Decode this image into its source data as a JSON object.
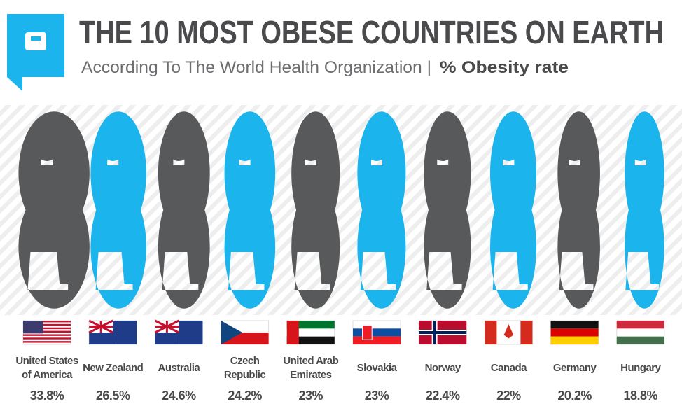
{
  "chart_data": {
    "type": "pictograph",
    "title": "THE 10 MOST OBESE COUNTRIES ON EARTH",
    "subtitle": "According To The World Health Organization |",
    "measure": "% Obesity rate",
    "categories": [
      "United States of America",
      "New Zealand",
      "Australia",
      "Czech Republic",
      "United Arab Emirates",
      "Slovakia",
      "Norway",
      "Canada",
      "Germany",
      "Hungary"
    ],
    "values": [
      33.8,
      26.5,
      24.6,
      24.2,
      23,
      23,
      22.4,
      22,
      20.2,
      18.8
    ],
    "value_labels": [
      "33.8%",
      "26.5%",
      "24.6%",
      "24.2%",
      "23%",
      "23%",
      "22.4%",
      "22%",
      "20.2%",
      "18.8%"
    ],
    "colors": [
      "#58595b",
      "#1cb4ec",
      "#58595b",
      "#1cb4ec",
      "#58595b",
      "#1cb4ec",
      "#58595b",
      "#1cb4ec",
      "#58595b",
      "#1cb4ec"
    ]
  }
}
